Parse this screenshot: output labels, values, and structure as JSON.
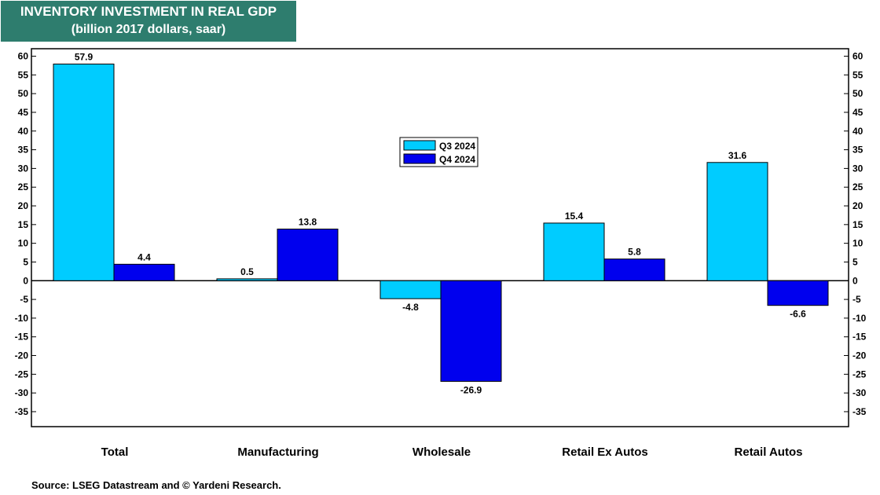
{
  "header": {
    "title": "INVENTORY INVESTMENT IN REAL GDP",
    "subtitle": "(billion 2017 dollars, saar)"
  },
  "footer": {
    "source": "Source: LSEG Datastream and © Yardeni Research."
  },
  "colors": {
    "q3": "#00ccff",
    "q4": "#0000ee",
    "title_bg": "#2e7d6e"
  },
  "chart_data": {
    "type": "bar",
    "title": "INVENTORY INVESTMENT IN REAL GDP",
    "subtitle": "(billion 2017 dollars, saar)",
    "categories": [
      "Total",
      "Manufacturing",
      "Wholesale",
      "Retail Ex Autos",
      "Retail Autos"
    ],
    "series": [
      {
        "name": "Q3 2024",
        "values": [
          57.9,
          0.5,
          -4.8,
          15.4,
          31.6
        ],
        "labels": [
          "57.9",
          "0.5",
          "-4.8",
          "15.4",
          "31.6"
        ]
      },
      {
        "name": "Q4 2024",
        "values": [
          4.4,
          13.8,
          -26.9,
          5.8,
          -6.6
        ],
        "labels": [
          "4.4",
          "13.8",
          "-26.9",
          "5.8",
          "-6.6"
        ]
      }
    ],
    "ylim": [
      -39,
      62
    ],
    "yticks": [
      60,
      55,
      50,
      45,
      40,
      35,
      30,
      25,
      20,
      15,
      10,
      5,
      0,
      -5,
      -10,
      -15,
      -20,
      -25,
      -30,
      -35
    ],
    "ytick_labels": [
      "60",
      "55",
      "50",
      "45",
      "40",
      "35",
      "30",
      "25",
      "20",
      "15",
      "10",
      "5",
      "0",
      "-5",
      "-10",
      "-15",
      "-20",
      "-25",
      "-30",
      "-35"
    ],
    "xlabel": "",
    "ylabel": "",
    "legend_position": "center-top",
    "grid": false
  }
}
